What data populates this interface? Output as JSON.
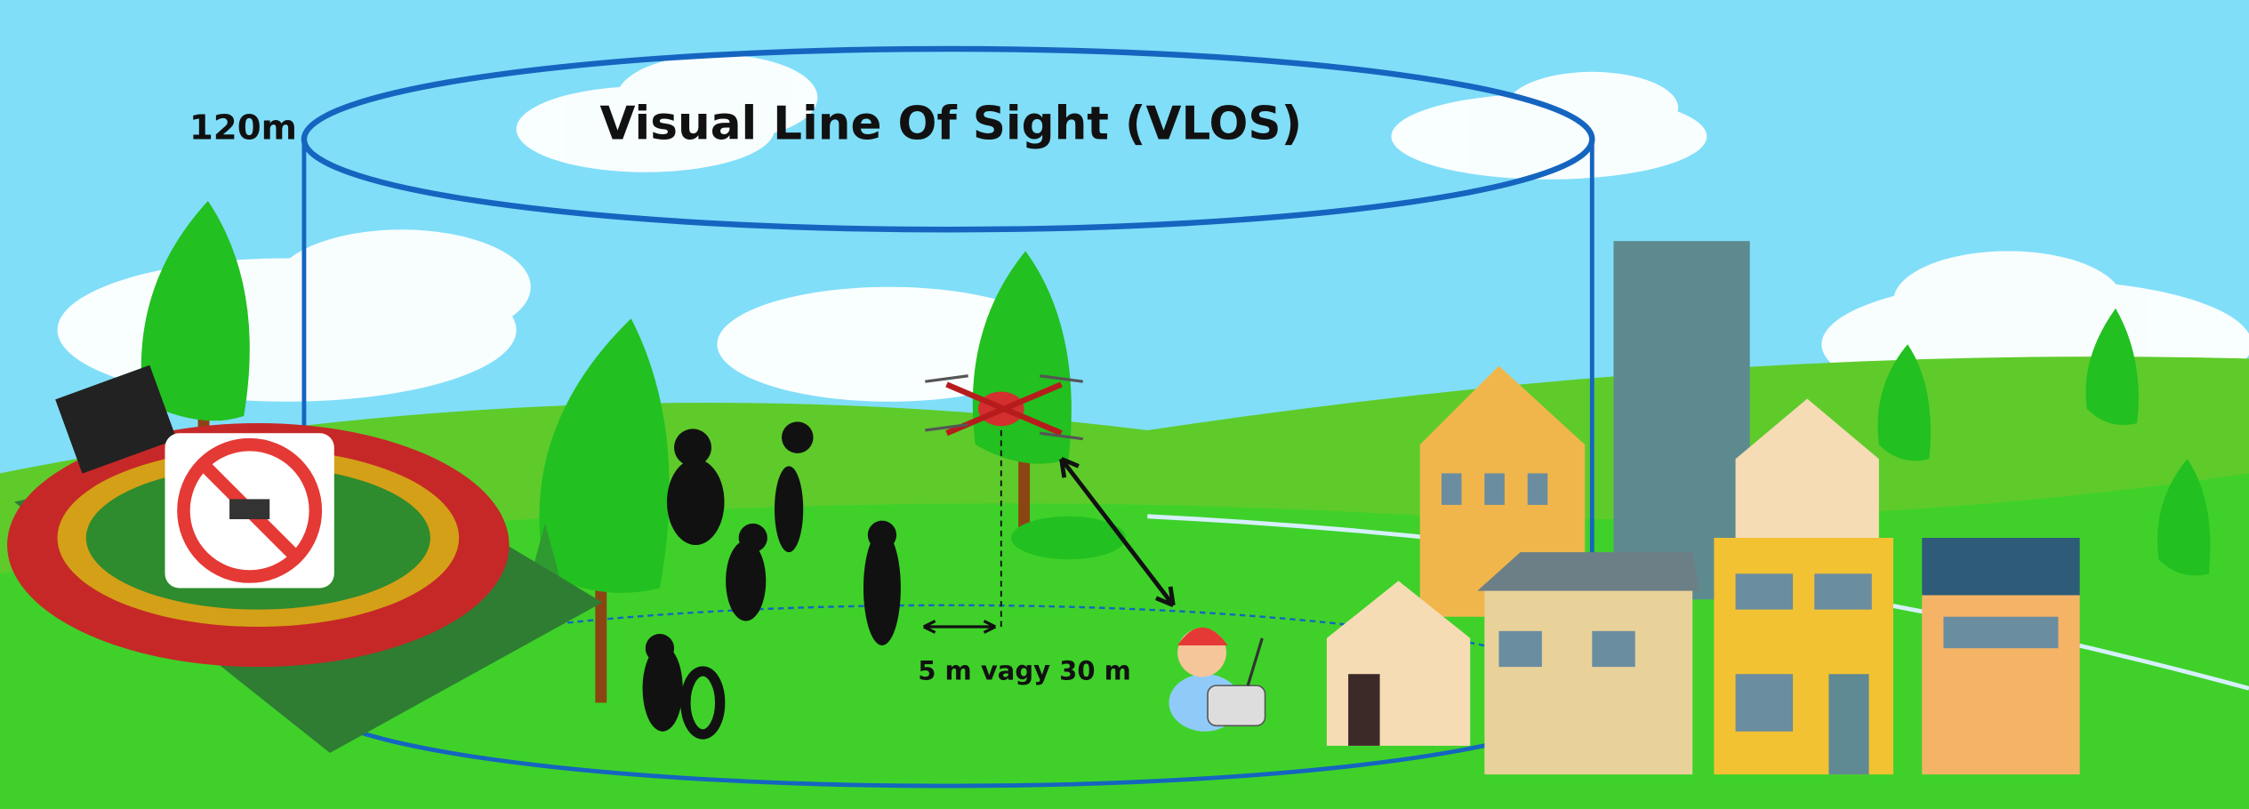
{
  "labels": {
    "height": "120m",
    "title": "Visual Line Of Sight (VLOS)",
    "distance": "5 m vagy 30 m"
  }
}
